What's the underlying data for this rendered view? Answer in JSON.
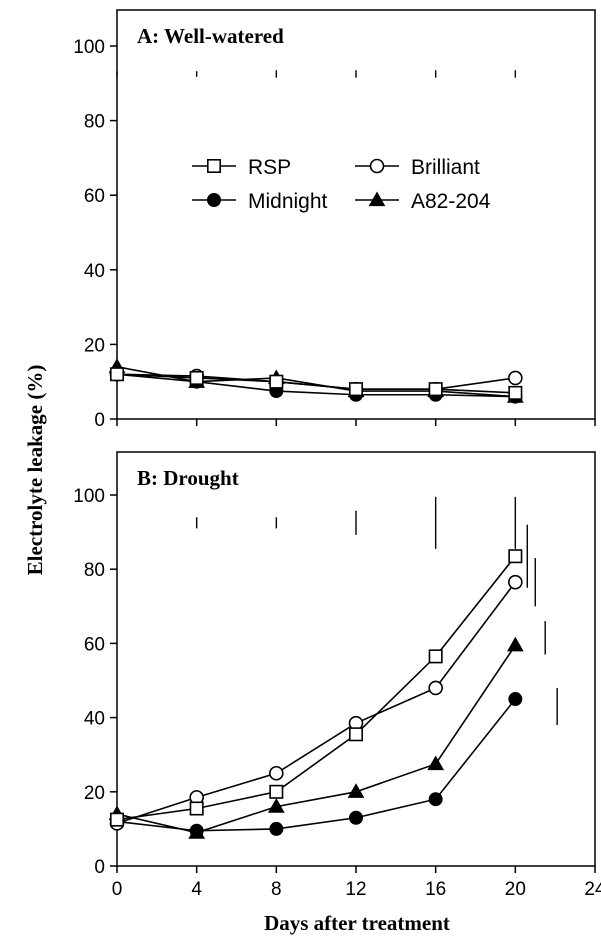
{
  "chart_data": {
    "type": "line",
    "ylabel": "Electrolyte leakage (%)",
    "xlabel": "Days after treatment",
    "xlim": [
      0,
      24
    ],
    "ylim": [
      0,
      100
    ],
    "x_ticks": [
      0,
      4,
      8,
      12,
      16,
      20,
      24
    ],
    "y_ticks": [
      0,
      20,
      40,
      60,
      80,
      100
    ],
    "x_tick_labels": [
      "0",
      "4",
      "8",
      "12",
      "16",
      "20",
      "24"
    ],
    "y_tick_labels": [
      "0",
      "20",
      "40",
      "60",
      "80",
      "100"
    ],
    "legend": [
      {
        "name": "RSP",
        "marker": "square-open"
      },
      {
        "name": "Brilliant",
        "marker": "circle-open"
      },
      {
        "name": "Midnight",
        "marker": "circle-filled"
      },
      {
        "name": "A82-204",
        "marker": "triangle-filled"
      }
    ],
    "panels": [
      {
        "title": "A: Well-watered",
        "x": [
          0,
          4,
          8,
          12,
          16,
          20
        ],
        "series": [
          {
            "name": "RSP",
            "values": [
              12,
              11,
              10,
              8,
              8,
              7
            ]
          },
          {
            "name": "Brilliant",
            "values": [
              12,
              11.5,
              10,
              8,
              8,
              11
            ]
          },
          {
            "name": "Midnight",
            "values": [
              12,
              10,
              7.5,
              6.5,
              6.5,
              6
            ]
          },
          {
            "name": "A82-204",
            "values": [
              14,
              10,
              11,
              7.5,
              7.5,
              6
            ]
          }
        ],
        "lsd_bars": [
          {
            "x": 0,
            "height": 1.5
          },
          {
            "x": 4,
            "height": 1.5
          },
          {
            "x": 8,
            "height": 2
          },
          {
            "x": 12,
            "height": 2
          },
          {
            "x": 16,
            "height": 2
          },
          {
            "x": 20,
            "height": 2
          }
        ],
        "lsd_bars_center": 92.5
      },
      {
        "title": "B: Drought",
        "x": [
          0,
          4,
          8,
          12,
          16,
          20
        ],
        "series": [
          {
            "name": "RSP",
            "values": [
              12.5,
              15.5,
              20,
              35.5,
              56.5,
              83.5
            ]
          },
          {
            "name": "Brilliant",
            "values": [
              11.5,
              18.5,
              25,
              38.5,
              48,
              76.5
            ]
          },
          {
            "name": "Midnight",
            "values": [
              12,
              9.5,
              10,
              13,
              18,
              45
            ]
          },
          {
            "name": "A82-204",
            "values": [
              14,
              9,
              16,
              20,
              27.5,
              59.5
            ]
          }
        ],
        "lsd_bars": [
          {
            "x": 4,
            "height": 3
          },
          {
            "x": 8,
            "height": 3
          },
          {
            "x": 12,
            "height": 6.5
          },
          {
            "x": 16,
            "height": 14
          },
          {
            "x": 20,
            "height": 14
          }
        ],
        "lsd_bars_center": 92.5,
        "side_bars": [
          {
            "x": 20.6,
            "y1": 75,
            "y2": 92
          },
          {
            "x": 21.0,
            "y1": 70,
            "y2": 83
          },
          {
            "x": 21.5,
            "y1": 57,
            "y2": 66
          },
          {
            "x": 22.1,
            "y1": 38,
            "y2": 48
          }
        ]
      }
    ]
  }
}
